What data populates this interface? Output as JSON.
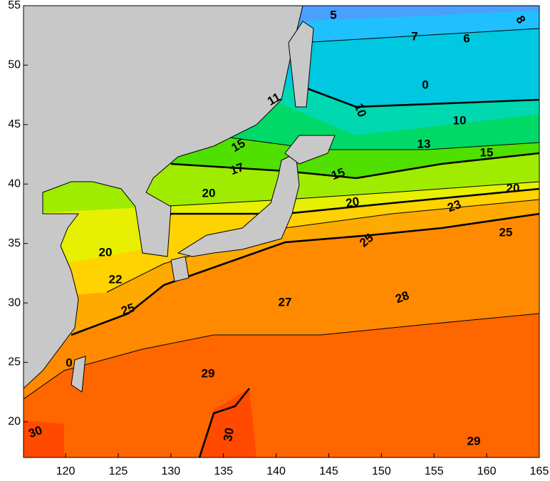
{
  "map": {
    "xlim": [
      116,
      165
    ],
    "ylim": [
      17,
      55
    ],
    "xticks": [
      120,
      125,
      130,
      135,
      140,
      145,
      150,
      155,
      160,
      165
    ],
    "yticks": [
      20,
      25,
      30,
      35,
      40,
      45,
      50,
      55
    ],
    "contour_labels": [
      5,
      8,
      7,
      6,
      0,
      11,
      10,
      10,
      15,
      13,
      15,
      17,
      20,
      15,
      20,
      20,
      23,
      25,
      25,
      20,
      22,
      25,
      27,
      28,
      0,
      29,
      30,
      30,
      29
    ]
  }
}
